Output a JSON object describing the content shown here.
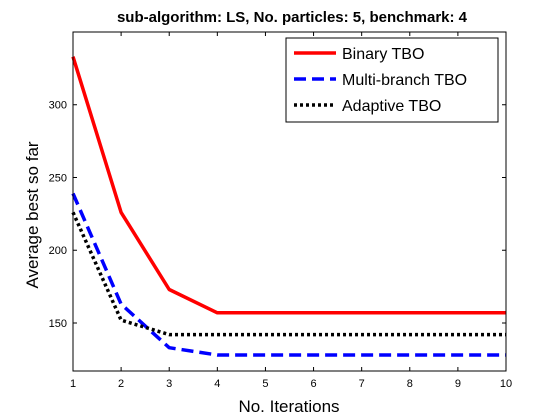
{
  "chart_data": {
    "type": "line",
    "title": "sub-algorithm: LS, No. particles: 5, benchmark: 4",
    "xlabel": "No. Iterations",
    "ylabel": "Average best so far",
    "xlim": [
      1,
      10
    ],
    "ylim": [
      117,
      350
    ],
    "x": [
      1,
      2,
      3,
      4,
      5,
      6,
      7,
      8,
      9,
      10
    ],
    "xticks": [
      1,
      2,
      3,
      4,
      5,
      6,
      7,
      8,
      9,
      10
    ],
    "yticks": [
      150,
      200,
      250,
      300
    ],
    "grid": false,
    "legend_position": "top-right",
    "series": [
      {
        "name": "Binary TBO",
        "color": "#ff0000",
        "style": "solid",
        "values": [
          333,
          226,
          173,
          157,
          157,
          157,
          157,
          157,
          157,
          157
        ]
      },
      {
        "name": "Multi-branch TBO",
        "color": "#0000ff",
        "style": "dashed",
        "values": [
          239,
          163,
          133,
          128,
          128,
          128,
          128,
          128,
          128,
          128
        ]
      },
      {
        "name": "Adaptive TBO",
        "color": "#000000",
        "style": "dotted",
        "values": [
          226,
          152,
          142,
          142,
          142,
          142,
          142,
          142,
          142,
          142
        ]
      }
    ]
  }
}
